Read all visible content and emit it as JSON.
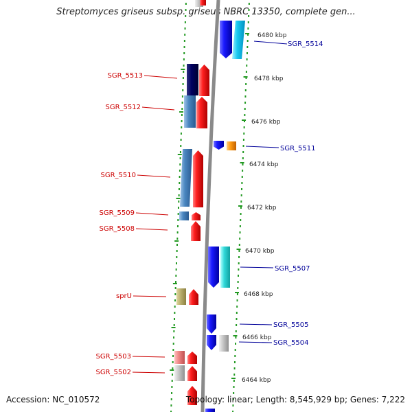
{
  "title": "Streptomyces griseus subsp. griseus NBRC 13350, complete gen...",
  "footer": {
    "accession": "Accession: NC_010572",
    "topology": "Topology: linear; Length: 8,545,929 bp; Genes: 7,222"
  },
  "colors": {
    "left_label": "#cc0000",
    "right_label": "#000099",
    "tick": "#229922",
    "axis": "#8a8a8a"
  },
  "scale_labels": [
    {
      "text": "6480 kbp",
      "kbp": 6480
    },
    {
      "text": "6478 kbp",
      "kbp": 6478
    },
    {
      "text": "6476 kbp",
      "kbp": 6476
    },
    {
      "text": "6474 kbp",
      "kbp": 6474
    },
    {
      "text": "6472 kbp",
      "kbp": 6472
    },
    {
      "text": "6470 kbp",
      "kbp": 6470
    },
    {
      "text": "6468 kbp",
      "kbp": 6468
    },
    {
      "text": "6466 kbp",
      "kbp": 6466
    },
    {
      "text": "6464 kbp",
      "kbp": 6464
    }
  ],
  "left_labels": [
    {
      "text": "SGR_5513"
    },
    {
      "text": "SGR_5512"
    },
    {
      "text": "SGR_5510"
    },
    {
      "text": "SGR_5509"
    },
    {
      "text": "SGR_5508"
    },
    {
      "text": "sprU"
    },
    {
      "text": "SGR_5503"
    },
    {
      "text": "SGR_5502"
    }
  ],
  "right_labels": [
    {
      "text": "SGR_5514"
    },
    {
      "text": "SGR_5511"
    },
    {
      "text": "SGR_5507"
    },
    {
      "text": "SGR_5505"
    },
    {
      "text": "SGR_5504"
    }
  ]
}
